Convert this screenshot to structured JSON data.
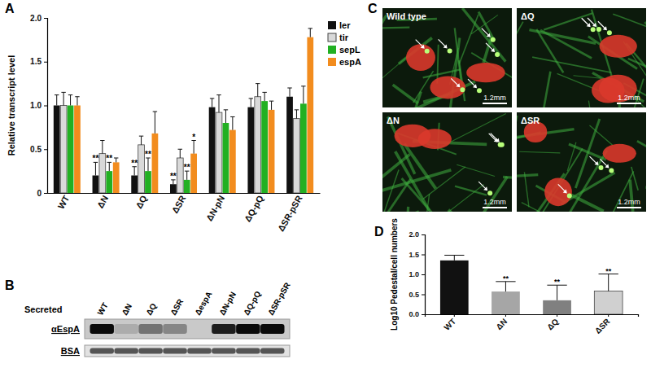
{
  "panel_labels": [
    "A",
    "B",
    "C",
    "D"
  ],
  "chart_data": [
    {
      "type": "bar",
      "y_label": "Relative transcript level",
      "categories": [
        "WT",
        "ΔN",
        "ΔQ",
        "ΔSR",
        "ΔN-pN",
        "ΔQ-pQ",
        "ΔSR-pSR"
      ],
      "series": [
        {
          "name": "ler",
          "color": "#111111",
          "values": [
            1.0,
            0.2,
            0.2,
            0.1,
            0.98,
            0.98,
            1.1
          ],
          "errors": [
            0.12,
            0.15,
            0.1,
            0.05,
            0.1,
            0.1,
            0.1
          ]
        },
        {
          "name": "tir",
          "color": "#d9d9d9",
          "values": [
            1.0,
            0.45,
            0.55,
            0.4,
            0.92,
            1.1,
            0.85
          ],
          "errors": [
            0.15,
            0.15,
            0.1,
            0.1,
            0.2,
            0.15,
            0.1
          ]
        },
        {
          "name": "sepL",
          "color": "#22b022",
          "values": [
            1.0,
            0.25,
            0.25,
            0.15,
            0.8,
            1.05,
            1.02
          ],
          "errors": [
            0.12,
            0.1,
            0.15,
            0.1,
            0.15,
            0.1,
            0.2
          ]
        },
        {
          "name": "espA",
          "color": "#f28c1e",
          "values": [
            1.0,
            0.35,
            0.68,
            0.45,
            0.72,
            0.95,
            1.78
          ],
          "errors": [
            0.1,
            0.05,
            0.25,
            0.15,
            0.15,
            0.1,
            0.1
          ]
        }
      ],
      "ylim": [
        0,
        2
      ],
      "yticks": [
        0,
        0.5,
        {
          "value": 1,
          "label": "1.0"
        },
        1.5,
        {
          "value": 2,
          "label": "2.0"
        }
      ],
      "legend": "top-right",
      "annotations": [
        {
          "text": "**",
          "category": 1,
          "series": 0
        },
        {
          "text": "**",
          "category": 1,
          "series": 2
        },
        {
          "text": "**",
          "category": 2,
          "series": 0
        },
        {
          "text": "**",
          "category": 2,
          "series": 2
        },
        {
          "text": "**",
          "category": 3,
          "series": 0
        },
        {
          "text": "**",
          "category": 3,
          "series": 2
        },
        {
          "text": "*",
          "category": 3,
          "series": 3
        }
      ]
    },
    {
      "type": "bar",
      "y_label": "Log10 Pedestal/cell numbers",
      "categories": [
        "WT",
        "ΔN",
        "ΔQ",
        "ΔSR"
      ],
      "values": [
        1.35,
        0.57,
        0.35,
        0.58
      ],
      "errors": [
        0.13,
        0.25,
        0.38,
        0.43
      ],
      "colors": [
        "#111111",
        "#a6a6a6",
        "#808080",
        "#d0d0d0"
      ],
      "ylim": [
        0,
        2
      ],
      "yticks": [
        {
          "value": 0,
          "label": "0.0"
        },
        0.5,
        {
          "value": 1,
          "label": "1.0"
        },
        1.5,
        {
          "value": 2,
          "label": "2.0"
        }
      ],
      "annotations": [
        {
          "text": "**",
          "category": 1
        },
        {
          "text": "**",
          "category": 2
        },
        {
          "text": "**",
          "category": 3
        }
      ]
    }
  ],
  "blot": {
    "title": "Secreted",
    "lanes": [
      "WT",
      "ΔN",
      "ΔQ",
      "ΔSR",
      "ΔespA",
      "ΔN-pN",
      "ΔQ-pQ",
      "ΔSR-pSR"
    ],
    "rows": [
      {
        "label": "αEspA",
        "intensities": [
          1.0,
          0.15,
          0.45,
          0.35,
          0.0,
          0.9,
          1.0,
          1.0
        ]
      },
      {
        "label": "BSA",
        "intensities": [
          1.0,
          1.0,
          1.0,
          1.0,
          1.0,
          1.0,
          1.0,
          1.0
        ]
      }
    ]
  },
  "micrographs": [
    {
      "label": "Wild type",
      "scale_bar": "1.2mm"
    },
    {
      "label": "ΔQ",
      "scale_bar": "1.2mm"
    },
    {
      "label": "ΔN",
      "scale_bar": "1.2mm"
    },
    {
      "label": "ΔSR",
      "scale_bar": "1.2mm"
    }
  ]
}
